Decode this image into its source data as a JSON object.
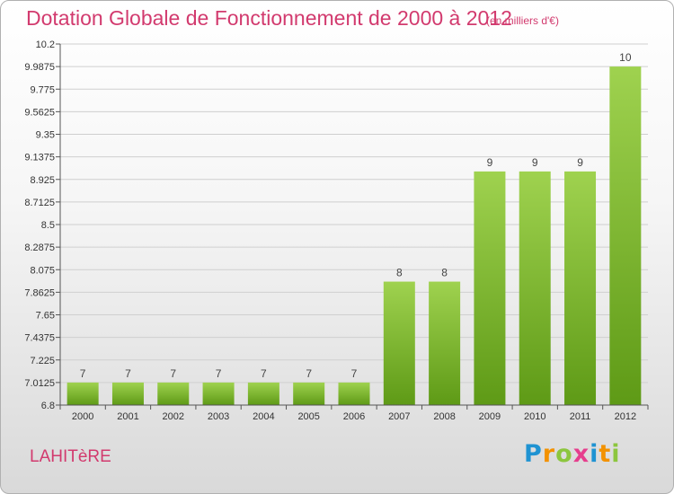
{
  "title": "Dotation Globale de Fonctionnement de 2000 à 2012",
  "subtitle": "(en milliers d'€)",
  "commune": "LAHITèRE",
  "logo": {
    "letters": [
      "P",
      "r",
      "o",
      "x",
      "i",
      "t",
      "i"
    ],
    "colors": [
      "#1f93d2",
      "#f39200",
      "#8cc63e",
      "#e63e8d",
      "#1f93d2",
      "#f39200",
      "#8cc63e"
    ]
  },
  "colors": {
    "bar_top": "#9fd24f",
    "bar_bottom": "#5e9a16",
    "title": "#d23a6e",
    "grid": "#cfcfcf"
  },
  "chart_data": {
    "type": "bar",
    "categories": [
      "2000",
      "2001",
      "2002",
      "2003",
      "2004",
      "2005",
      "2006",
      "2007",
      "2008",
      "2009",
      "2010",
      "2011",
      "2012"
    ],
    "values": [
      7,
      7,
      7,
      7,
      7,
      7,
      7,
      8,
      8,
      9,
      9,
      9,
      10
    ],
    "data_labels": [
      "7",
      "7",
      "7",
      "7",
      "7",
      "7",
      "7",
      "8",
      "8",
      "9",
      "9",
      "9",
      "10"
    ],
    "bar_display_values": [
      7.0125,
      7.0125,
      7.0125,
      7.0125,
      7.0125,
      7.0125,
      7.0125,
      7.9625,
      7.9625,
      9.0,
      9.0,
      9.0,
      9.9875
    ],
    "yticks": [
      "6.8",
      "7.0125",
      "7.225",
      "7.4375",
      "7.65",
      "7.8625",
      "8.075",
      "8.2875",
      "8.5",
      "8.7125",
      "8.925",
      "9.1375",
      "9.35",
      "9.5625",
      "9.775",
      "9.9875",
      "10.2"
    ],
    "ylim": [
      6.8,
      10.2
    ],
    "grid": true,
    "xlabel": "",
    "ylabel": ""
  }
}
